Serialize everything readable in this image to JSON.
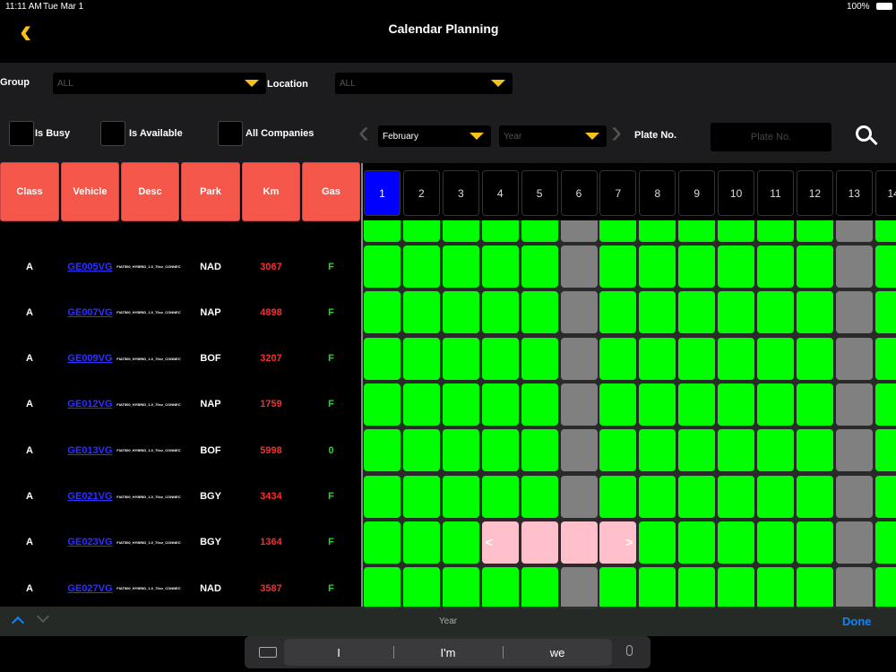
{
  "status_bar": {
    "time": "11:11 AM",
    "date": "Tue Mar 1",
    "battery": "100%"
  },
  "header": {
    "title": "Calendar Planning"
  },
  "filters": {
    "group_label": "Group",
    "group_value": "ALL",
    "location_label": "Location",
    "location_value": "ALL",
    "is_busy": "Is Busy",
    "is_available": "Is Available",
    "all_companies": "All Companies",
    "month": "February",
    "year_placeholder": "Year",
    "plate_label": "Plate No.",
    "plate_placeholder": "Plate No."
  },
  "table": {
    "columns": [
      "Class",
      "Vehicle",
      "Desc",
      "Park",
      "Km",
      "Gas"
    ],
    "rows": [
      [
        "A",
        "GE005VG",
        "FIAT500_HYBRID_1.0_70cv_CONNECT.",
        "NAD",
        "3067",
        "F"
      ],
      [
        "A",
        "GE007VG",
        "FIAT500_HYBRID_1.0_70cv_CONNECT.",
        "NAP",
        "4898",
        "F"
      ],
      [
        "A",
        "GE009VG",
        "FIAT500_HYBRID_1.0_70cv_CONNECT.",
        "BOF",
        "3207",
        "F"
      ],
      [
        "A",
        "GE012VG",
        "FIAT500_HYBRID_1.0_70cv_CONNECT.",
        "NAP",
        "1759",
        "F"
      ],
      [
        "A",
        "GE013VG",
        "FIAT500_HYBRID_1.0_70cv_CONNECT.",
        "BOF",
        "5998",
        "0"
      ],
      [
        "A",
        "GE021VG",
        "FIAT500_HYBRID_1.0_70cv_CONNECT.",
        "BGY",
        "3434",
        "F"
      ],
      [
        "A",
        "GE023VG",
        "FIAT500_HYBRID_1.0_70cv_CONNECT.",
        "BGY",
        "1364",
        "F"
      ],
      [
        "A",
        "GE027VG",
        "FIAT500_HYBRID_1.0_70cv_CONNECT.",
        "NAD",
        "3587",
        "F"
      ]
    ]
  },
  "calendar": {
    "days": [
      "1",
      "2",
      "3",
      "4",
      "5",
      "6",
      "7",
      "8",
      "9",
      "10",
      "11",
      "12",
      "13",
      "14"
    ],
    "booking_start": "<",
    "booking_end": ">"
  },
  "keyboard": {
    "field": "Year",
    "done": "Done",
    "suggestions": [
      "I",
      "I'm",
      "we"
    ]
  }
}
